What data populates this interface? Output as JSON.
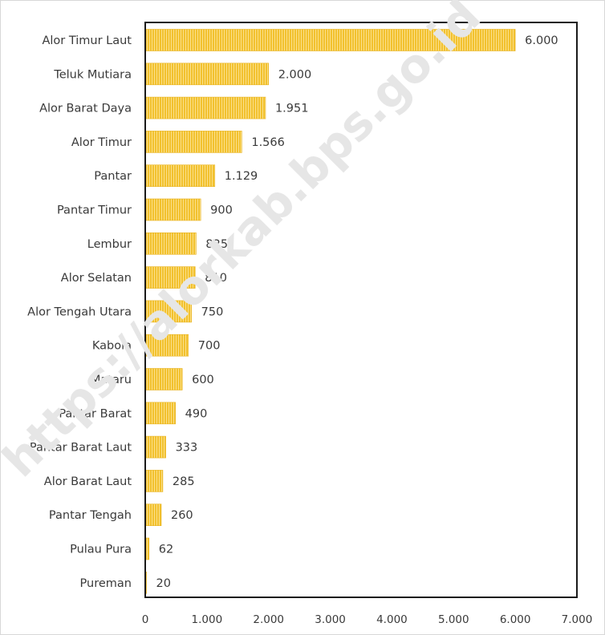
{
  "chart_data": {
    "type": "bar",
    "orientation": "horizontal",
    "categories": [
      "Alor Timur Laut",
      "Teluk Mutiara",
      "Alor Barat Daya",
      "Alor Timur",
      "Pantar",
      "Pantar Timur",
      "Lembur",
      "Alor Selatan",
      "Alor Tengah Utara",
      "Kabola",
      "Mataru",
      "Pantar Barat",
      "Pantar Barat Laut",
      "Alor Barat Laut",
      "Pantar Tengah",
      "Pulau Pura",
      "Pureman"
    ],
    "values": [
      6000,
      2000,
      1951,
      1566,
      1129,
      900,
      825,
      810,
      750,
      700,
      600,
      490,
      333,
      285,
      260,
      62,
      20
    ],
    "value_labels": [
      "6.000",
      "2.000",
      "1.951",
      "1.566",
      "1.129",
      "900",
      "825",
      "810",
      "750",
      "700",
      "600",
      "490",
      "333",
      "285",
      "260",
      "62",
      "20"
    ],
    "xlim": [
      0,
      7000
    ],
    "x_ticks": [
      0,
      1000,
      2000,
      3000,
      4000,
      5000,
      6000,
      7000
    ],
    "x_tick_labels": [
      "0",
      "1.000",
      "2.000",
      "3.000",
      "4.000",
      "5.000",
      "6.000",
      "7.000"
    ],
    "bar_color": "#f2c12e",
    "grid": false,
    "title": "",
    "xlabel": "",
    "ylabel": ""
  },
  "watermark": "https://alorkab.bps.go.id"
}
